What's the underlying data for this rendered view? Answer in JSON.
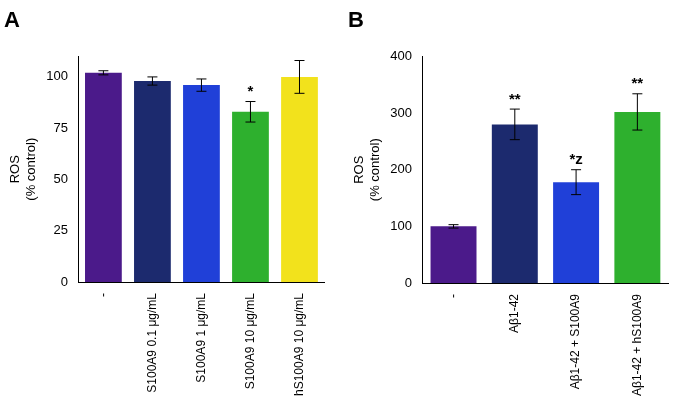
{
  "chart_data": [
    {
      "type": "bar",
      "title": "A",
      "y_label": [
        "ROS",
        "(% control)"
      ],
      "categories": [
        "-",
        "S100A9 0.1 μg/mL",
        "S100A9 1 μg/mL",
        "S100A9 10 μg/mL",
        "hS100A9 10 μg/mL"
      ],
      "values": [
        102,
        98,
        96,
        83,
        100
      ],
      "errors": [
        1,
        2,
        3,
        5,
        8
      ],
      "colors": [
        "#4b1a8a",
        "#1c2a6e",
        "#2040d8",
        "#2eb02e",
        "#f2e21c"
      ],
      "annotations": [
        {
          "category": "S100A9 10 μg/mL",
          "text": "*"
        }
      ],
      "ylim": [
        0,
        110
      ],
      "yticks": [
        0,
        25,
        50,
        75,
        100
      ],
      "grid": false
    },
    {
      "type": "bar",
      "title": "B",
      "y_label": [
        "ROS",
        "(% control)"
      ],
      "categories": [
        "-",
        "Aβ1-42",
        "Aβ1-42 + S100A9",
        "Aβ1-42 + hS100A9"
      ],
      "values": [
        100,
        280,
        178,
        302
      ],
      "errors": [
        3,
        27,
        22,
        32
      ],
      "colors": [
        "#4b1a8a",
        "#1c2a6e",
        "#2040d8",
        "#2eb02e"
      ],
      "annotations": [
        {
          "category": "Aβ1-42",
          "text": "**"
        },
        {
          "category": "Aβ1-42 + S100A9",
          "text": "*z"
        },
        {
          "category": "Aβ1-42 + hS100A9",
          "text": "**"
        }
      ],
      "ylim": [
        0,
        400
      ],
      "yticks": [
        0,
        100,
        200,
        300,
        400
      ],
      "grid": false
    }
  ]
}
